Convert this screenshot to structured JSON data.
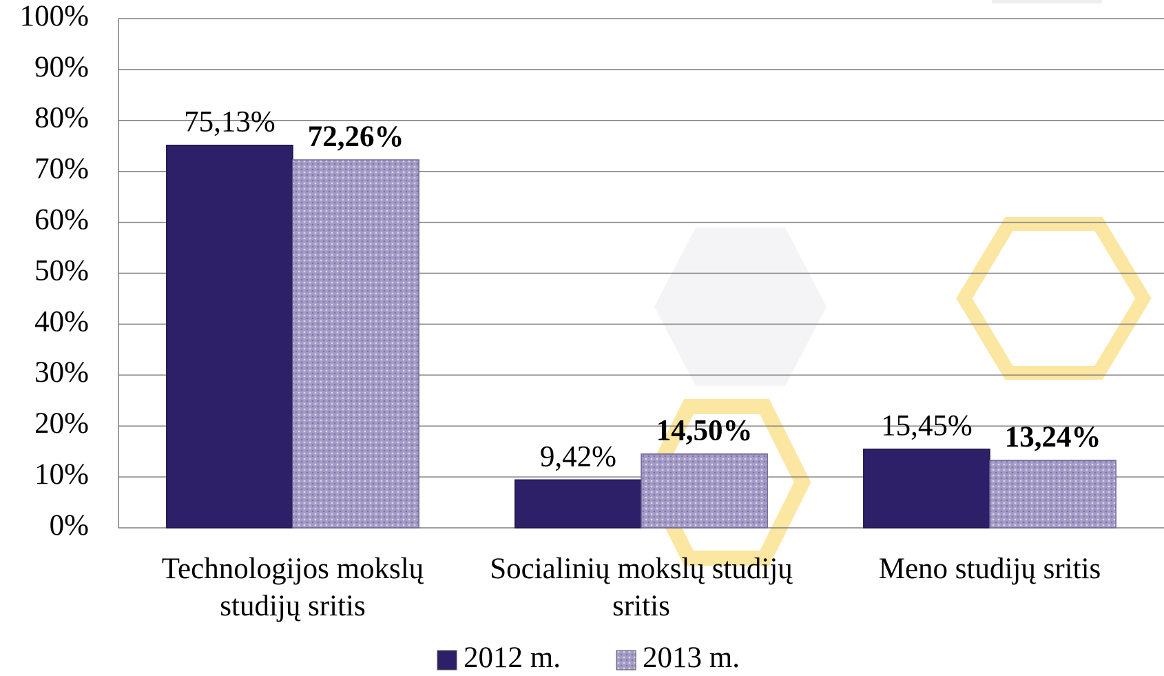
{
  "chart_data": {
    "type": "bar",
    "categories": [
      "Technologijos mokslų studijų sritis",
      "Socialinių mokslų studijų sritis",
      "Meno studijų sritis"
    ],
    "series": [
      {
        "name": "2012 m.",
        "color": "#2e2068",
        "values": [
          75.13,
          9.42,
          15.45
        ],
        "value_labels": [
          "75,13%",
          "9,42%",
          "15,45%"
        ]
      },
      {
        "name": "2013 m.",
        "color": "#a59cc6",
        "values": [
          72.26,
          14.5,
          13.24
        ],
        "value_labels": [
          "72,26%",
          "14,50%",
          "13,24%"
        ]
      }
    ],
    "ylim": [
      0,
      100
    ],
    "yticks": [
      {
        "value": 0,
        "label": "0%"
      },
      {
        "value": 10,
        "label": "10%"
      },
      {
        "value": 20,
        "label": "20%"
      },
      {
        "value": 30,
        "label": "30%"
      },
      {
        "value": 40,
        "label": "40%"
      },
      {
        "value": 50,
        "label": "50%"
      },
      {
        "value": 60,
        "label": "60%"
      },
      {
        "value": 70,
        "label": "70%"
      },
      {
        "value": 80,
        "label": "80%"
      },
      {
        "value": 90,
        "label": "90%"
      },
      {
        "value": 100,
        "label": "100%"
      }
    ],
    "grid": true,
    "legend": "bottom"
  }
}
